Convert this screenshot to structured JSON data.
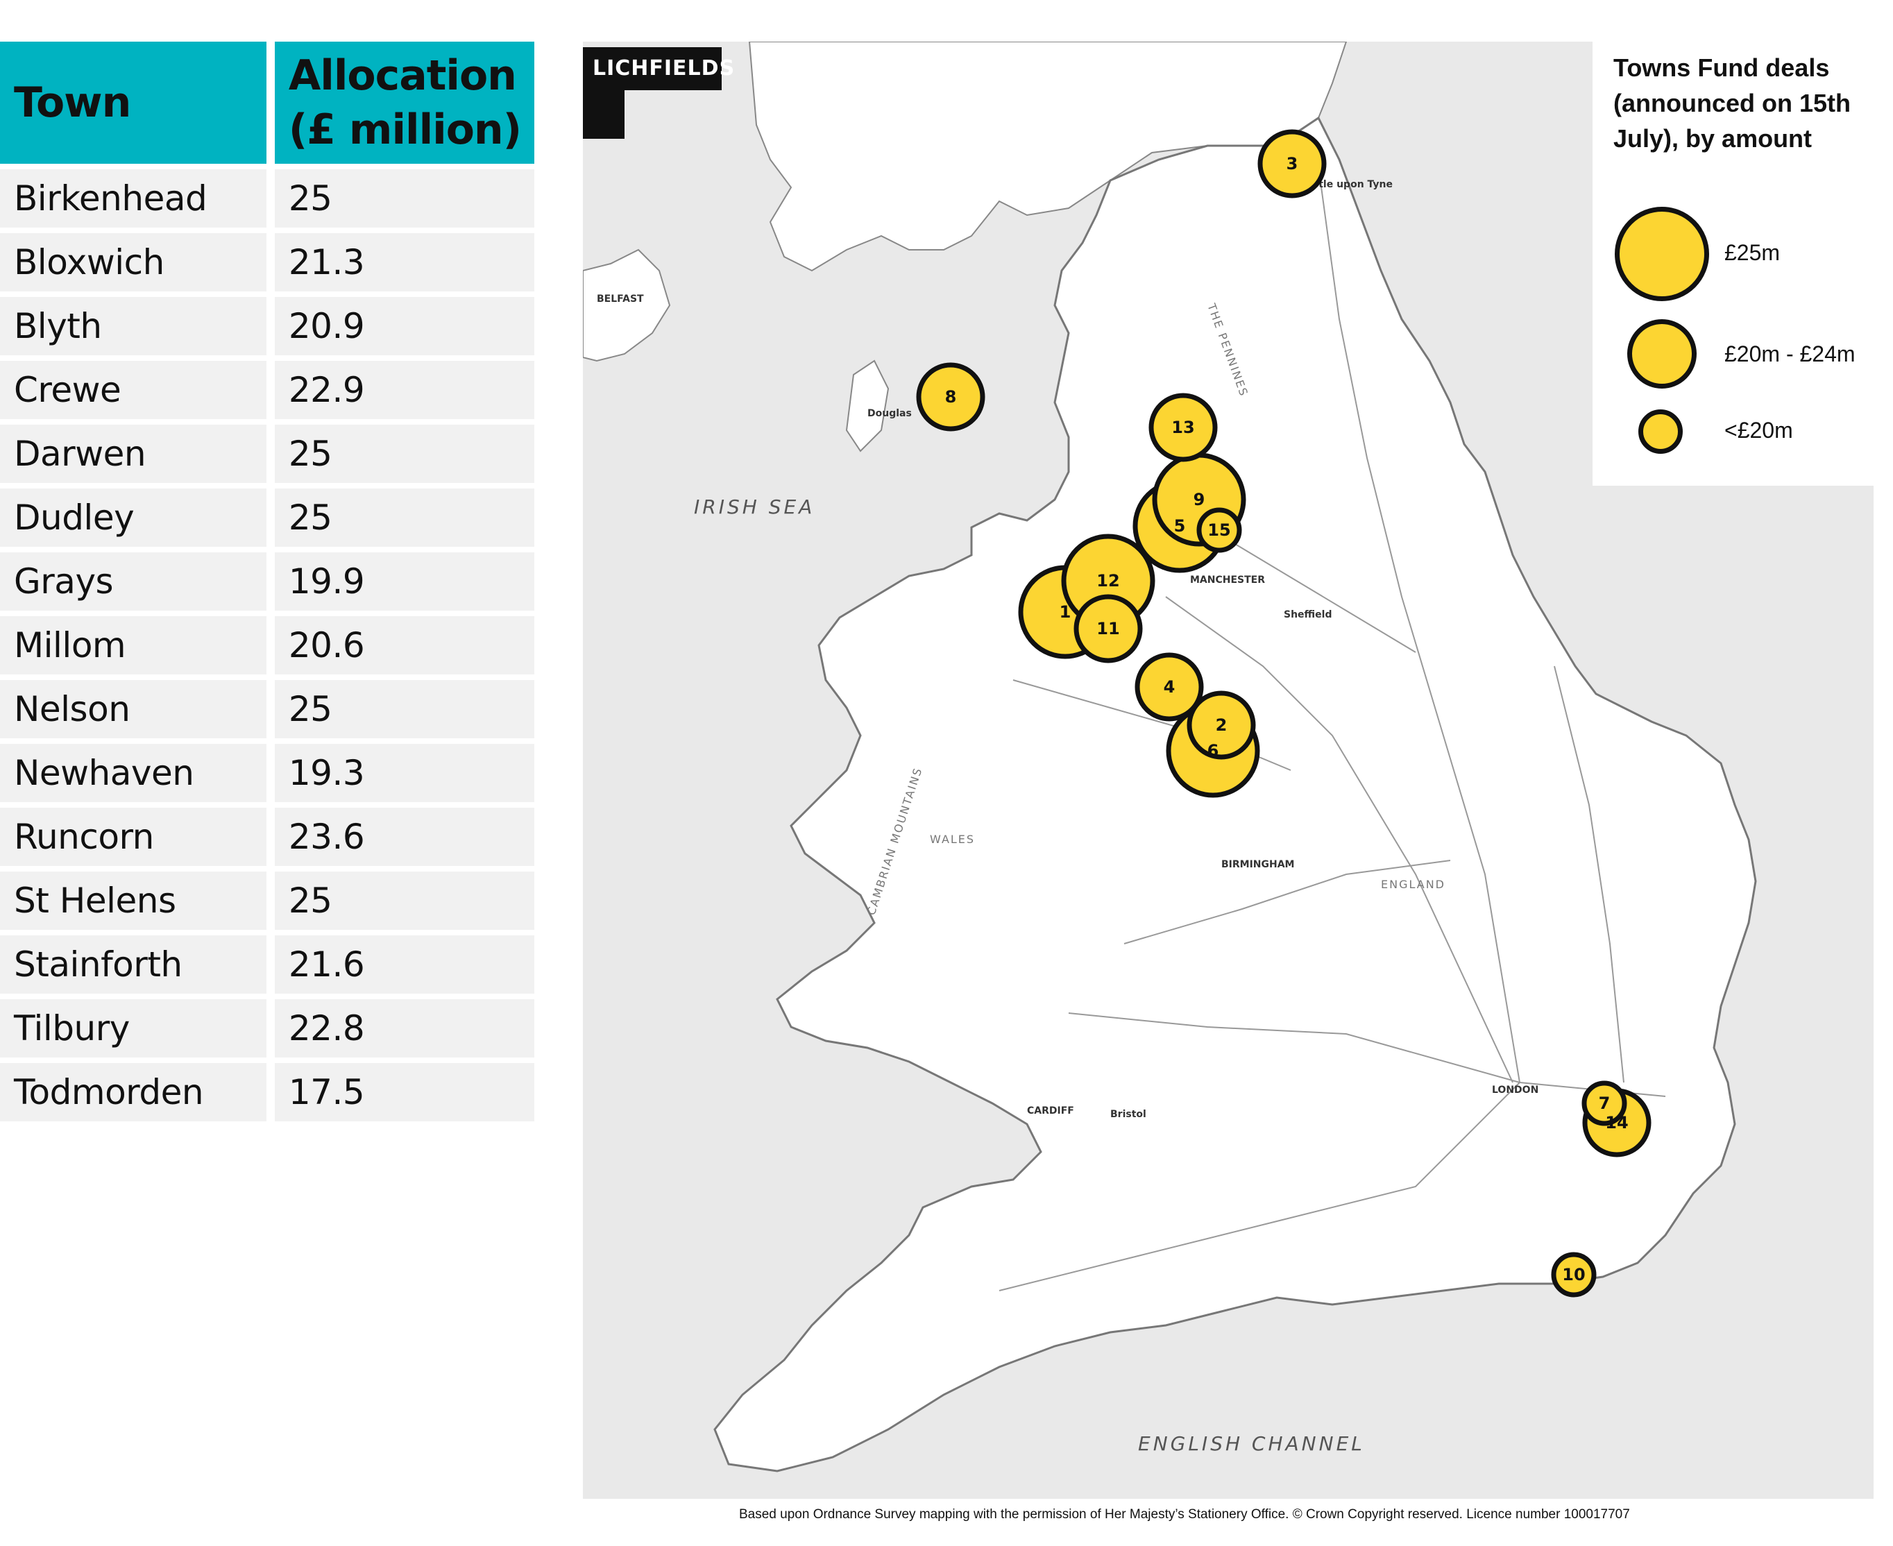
{
  "table": {
    "headers": {
      "town": "Town",
      "allocation_line1": "Allocation",
      "allocation_line2": "(£ million)"
    },
    "rows": [
      {
        "town": "Birkenhead",
        "allocation": "25"
      },
      {
        "town": "Bloxwich",
        "allocation": "21.3"
      },
      {
        "town": "Blyth",
        "allocation": "20.9"
      },
      {
        "town": "Crewe",
        "allocation": "22.9"
      },
      {
        "town": "Darwen",
        "allocation": "25"
      },
      {
        "town": "Dudley",
        "allocation": "25"
      },
      {
        "town": "Grays",
        "allocation": "19.9"
      },
      {
        "town": "Millom",
        "allocation": "20.6"
      },
      {
        "town": "Nelson",
        "allocation": "25"
      },
      {
        "town": "Newhaven",
        "allocation": "19.3"
      },
      {
        "town": "Runcorn",
        "allocation": "23.6"
      },
      {
        "town": "St Helens",
        "allocation": "25"
      },
      {
        "town": "Stainforth",
        "allocation": "21.6"
      },
      {
        "town": "Tilbury",
        "allocation": "22.8"
      },
      {
        "town": "Todmorden",
        "allocation": "17.5"
      }
    ]
  },
  "map": {
    "logo": "LICHFIELDS",
    "seas": {
      "irish_sea": "IRISH SEA",
      "english_channel": "ENGLISH CHANNEL"
    },
    "places": {
      "belfast": "BELFAST",
      "manchester": "MANCHESTER",
      "london": "LONDON",
      "cardiff": "CARDIFF",
      "wales": "WALES",
      "england": "ENGLAND",
      "newcastle": "Newcastle upon Tyne",
      "birmingham": "BIRMINGHAM",
      "sheffield": "Sheffield",
      "bristol": "Bristol",
      "douglas": "Douglas",
      "pennines": "THE PENNINES",
      "cambrian": "CAMBRIAN MOUNTAINS"
    },
    "markers": [
      {
        "label": "1",
        "town": "Birkenhead",
        "value": 25
      },
      {
        "label": "2",
        "town": "Bloxwich",
        "value": 21.3
      },
      {
        "label": "3",
        "town": "Blyth",
        "value": 20.9
      },
      {
        "label": "4",
        "town": "Crewe",
        "value": 22.9
      },
      {
        "label": "5",
        "town": "Darwen",
        "value": 25
      },
      {
        "label": "6",
        "town": "Dudley",
        "value": 25
      },
      {
        "label": "7",
        "town": "Grays",
        "value": 19.9
      },
      {
        "label": "8",
        "town": "Millom",
        "value": 20.6
      },
      {
        "label": "9",
        "town": "Nelson",
        "value": 25
      },
      {
        "label": "10",
        "town": "Newhaven",
        "value": 19.3
      },
      {
        "label": "11",
        "town": "Runcorn",
        "value": 23.6
      },
      {
        "label": "12",
        "town": "St Helens",
        "value": 25
      },
      {
        "label": "13",
        "town": "Stainforth",
        "value": 21.6
      },
      {
        "label": "14",
        "town": "Tilbury",
        "value": 22.8
      },
      {
        "label": "15",
        "town": "Todmorden",
        "value": 17.5
      }
    ]
  },
  "legend": {
    "title": "Towns Fund deals (announced on 15th July), by amount",
    "items": [
      {
        "label": "£25m",
        "size": "large"
      },
      {
        "label": "£20m - £24m",
        "size": "medium"
      },
      {
        "label": "<£20m",
        "size": "small"
      }
    ]
  },
  "footer": {
    "credit": "Based upon Ordnance Survey mapping with the permission of Her Majesty’s Stationery Office. © Crown Copyright reserved. Licence number 100017707"
  },
  "colors": {
    "table_header": "#00b3c1",
    "table_cell": "#f1f1f1",
    "bubble": "#fcd532",
    "outline": "#111111"
  }
}
